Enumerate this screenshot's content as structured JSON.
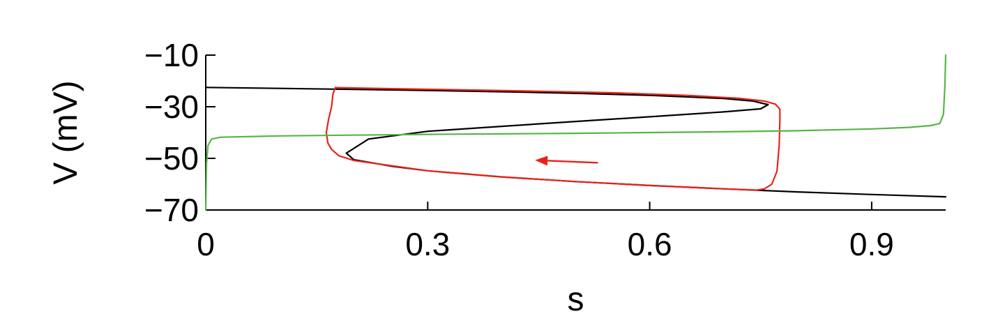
{
  "chart_data": {
    "type": "line",
    "xlabel": "s",
    "ylabel": "V (mV)",
    "xlim": [
      0,
      1
    ],
    "ylim": [
      -70,
      -10
    ],
    "xticks": [
      0,
      0.3,
      0.6,
      0.9
    ],
    "xtick_labels": [
      "0",
      "0.3",
      "0.6",
      "0.9"
    ],
    "yticks": [
      -10,
      -30,
      -50,
      -70
    ],
    "ytick_labels": [
      "−10",
      "−30",
      "−50",
      "−70"
    ],
    "grid": false,
    "legend": "none",
    "series": [
      {
        "color": "#000000",
        "x": [
          0.0,
          0.1,
          0.2,
          0.3,
          0.4,
          0.5,
          0.6,
          0.7,
          0.74,
          0.76,
          0.75,
          0.7,
          0.6,
          0.5,
          0.4,
          0.3,
          0.22,
          0.19,
          0.2,
          0.25,
          0.3,
          0.4,
          0.5,
          0.6,
          0.7,
          0.8,
          0.9,
          1.0
        ],
        "y": [
          -22.5,
          -22.9,
          -23.3,
          -23.7,
          -24.2,
          -24.8,
          -25.6,
          -26.8,
          -27.8,
          -29.2,
          -30.8,
          -32.0,
          -33.9,
          -35.7,
          -37.6,
          -39.5,
          -42.5,
          -48.0,
          -50.5,
          -53.0,
          -54.8,
          -57.2,
          -59.0,
          -60.5,
          -61.8,
          -63.0,
          -64.0,
          -64.9
        ]
      },
      {
        "color": "#e8221a",
        "x": [
          0.175,
          0.25,
          0.35,
          0.45,
          0.55,
          0.65,
          0.72,
          0.755,
          0.77,
          0.776,
          0.776,
          0.775,
          0.772,
          0.765,
          0.755,
          0.745,
          0.7,
          0.6,
          0.5,
          0.4,
          0.3,
          0.2,
          0.18,
          0.17,
          0.165,
          0.163,
          0.166,
          0.17,
          0.172,
          0.175
        ],
        "y": [
          -22.6,
          -23.0,
          -23.5,
          -24.0,
          -24.6,
          -25.6,
          -26.7,
          -27.8,
          -29.0,
          -31.0,
          -35.0,
          -45.0,
          -55.0,
          -60.0,
          -61.8,
          -62.3,
          -61.8,
          -60.5,
          -59.0,
          -57.2,
          -54.8,
          -50.8,
          -49.0,
          -46.5,
          -44.0,
          -40.0,
          -35.0,
          -30.0,
          -25.0,
          -22.6
        ]
      },
      {
        "color": "#55b646",
        "x": [
          0.0,
          0.001,
          0.003,
          0.008,
          0.02,
          0.1,
          0.2,
          0.3,
          0.4,
          0.5,
          0.6,
          0.7,
          0.8,
          0.9,
          0.95,
          0.98,
          0.992,
          0.997,
          0.999,
          1.0
        ],
        "y": [
          -70.0,
          -52.0,
          -45.0,
          -42.5,
          -41.8,
          -41.3,
          -41.0,
          -40.7,
          -40.5,
          -40.3,
          -40.0,
          -39.7,
          -39.3,
          -38.6,
          -38.0,
          -37.3,
          -36.5,
          -33.0,
          -22.0,
          -10.0
        ]
      }
    ],
    "annotations": [
      {
        "type": "arrow",
        "color": "#e8221a",
        "from": [
          0.53,
          -51.7
        ],
        "to": [
          0.445,
          -50.7
        ]
      }
    ]
  }
}
